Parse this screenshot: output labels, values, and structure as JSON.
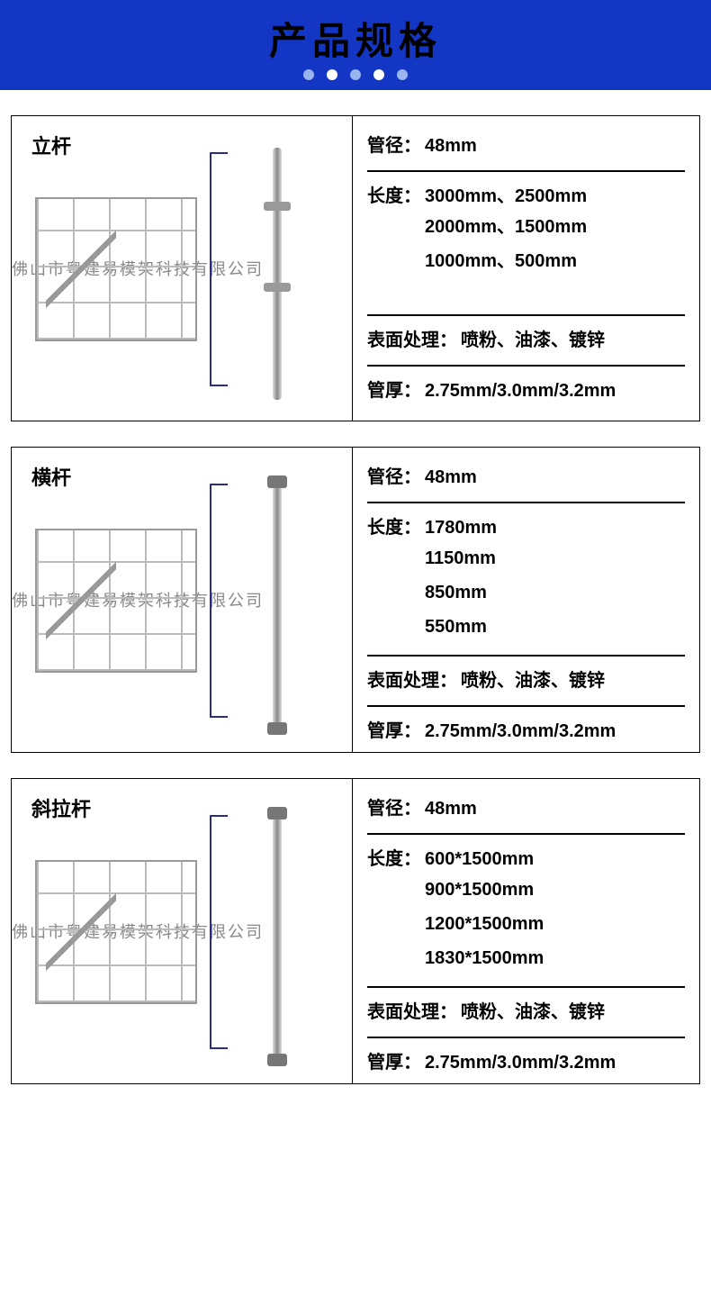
{
  "header": {
    "title": "产品规格",
    "bg_color": "#1337c4"
  },
  "watermark": "佛山市粤建易模架科技有限公司",
  "labels": {
    "diameter": "管径：",
    "length": "长度：",
    "surface": "表面处理：",
    "thickness": "管厚："
  },
  "products": [
    {
      "name": "立杆",
      "diameter": "48mm",
      "length_lines": [
        "3000mm、2500mm",
        "2000mm、1500mm",
        "1000mm、500mm"
      ],
      "surface": "喷粉、油漆、镀锌",
      "thickness": "2.75mm/3.0mm/3.2mm",
      "pole_style": "with-rings"
    },
    {
      "name": "横杆",
      "diameter": "48mm",
      "length_lines": [
        "1780mm",
        "1150mm",
        "850mm",
        "550mm"
      ],
      "surface": "喷粉、油漆、镀锌",
      "thickness": "2.75mm/3.0mm/3.2mm",
      "pole_style": "with-hooks"
    },
    {
      "name": "斜拉杆",
      "diameter": "48mm",
      "length_lines": [
        "600*1500mm",
        "900*1500mm",
        "1200*1500mm",
        "1830*1500mm"
      ],
      "surface": "喷粉、油漆、镀锌",
      "thickness": "2.75mm/3.0mm/3.2mm",
      "pole_style": "with-hooks"
    }
  ]
}
